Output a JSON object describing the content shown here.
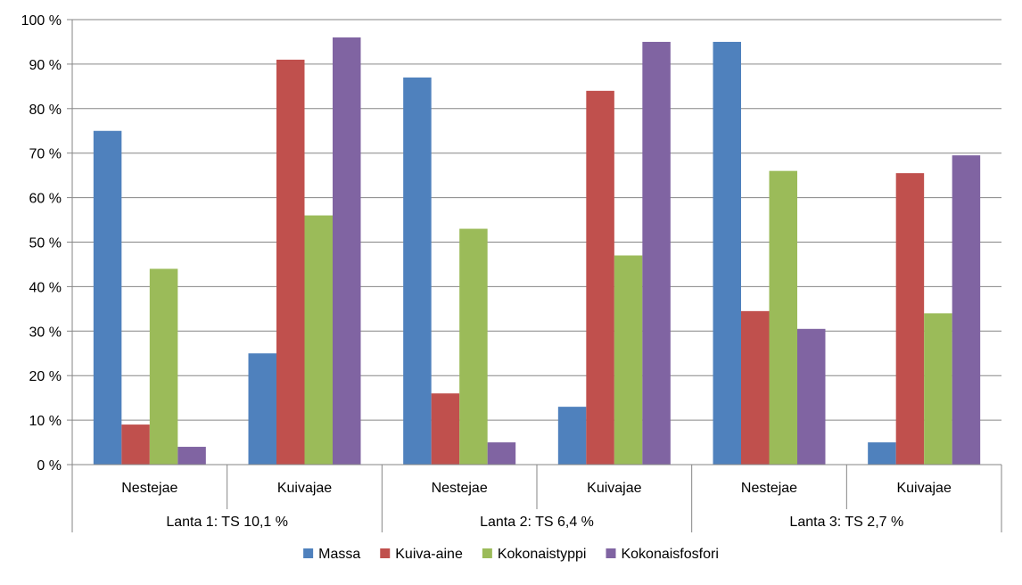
{
  "chart_data": {
    "type": "bar",
    "categories": [
      {
        "sub": "Nestejae",
        "group": "Lanta 1: TS 10,1 %"
      },
      {
        "sub": "Kuivajae",
        "group": "Lanta 1: TS 10,1 %"
      },
      {
        "sub": "Nestejae",
        "group": "Lanta 2: TS 6,4 %"
      },
      {
        "sub": "Kuivajae",
        "group": "Lanta 2: TS 6,4 %"
      },
      {
        "sub": "Nestejae",
        "group": "Lanta 3: TS 2,7 %"
      },
      {
        "sub": "Kuivajae",
        "group": "Lanta 3: TS 2,7 %"
      }
    ],
    "groups": [
      "Lanta 1: TS 10,1 %",
      "Lanta 2: TS 6,4 %",
      "Lanta 3: TS 2,7 %"
    ],
    "series": [
      {
        "name": "Massa",
        "color": "#4F81BD",
        "values": [
          75,
          25,
          87,
          13,
          95,
          5
        ]
      },
      {
        "name": "Kuiva-aine",
        "color": "#C0504D",
        "values": [
          9,
          91,
          16,
          84,
          34.5,
          65.5
        ]
      },
      {
        "name": "Kokonaistyppi",
        "color": "#9BBB59",
        "values": [
          44,
          56,
          53,
          47,
          66,
          34
        ]
      },
      {
        "name": "Kokonaisfosfori",
        "color": "#8064A2",
        "values": [
          4,
          96,
          5,
          95,
          30.5,
          69.5
        ]
      }
    ],
    "yticks": [
      "0 %",
      "10 %",
      "20 %",
      "30 %",
      "40 %",
      "50 %",
      "60 %",
      "70 %",
      "80 %",
      "90 %",
      "100 %"
    ],
    "ylim": [
      0,
      100
    ],
    "grid": true,
    "legend_position": "bottom"
  }
}
